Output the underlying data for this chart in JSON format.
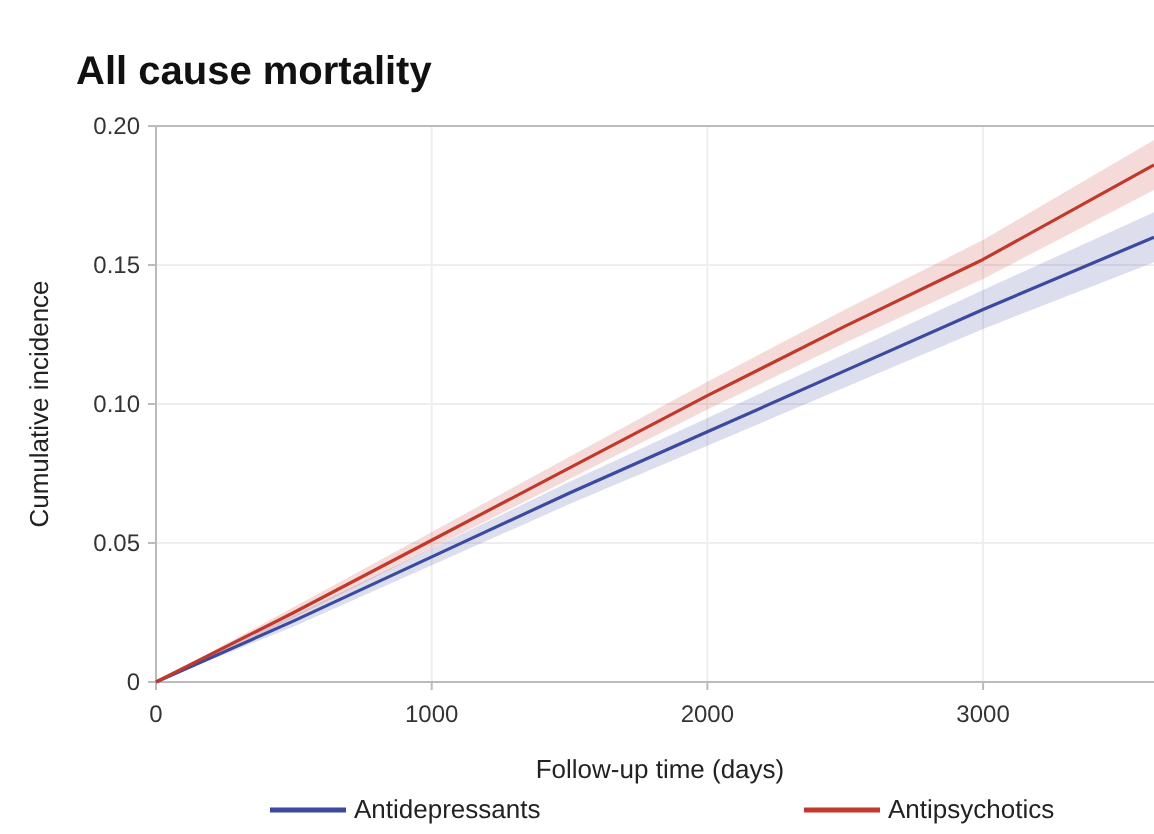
{
  "chart_data": {
    "type": "line",
    "title": "All cause mortality",
    "xlabel": "Follow-up time (days)",
    "ylabel": "Cumulative incidence",
    "x": [
      0,
      500,
      1000,
      1500,
      2000,
      2500,
      3000,
      3620
    ],
    "series": [
      {
        "name": "Antidepressants",
        "color": "#3b4a9e",
        "values": [
          0,
          0.022,
          0.045,
          0.068,
          0.09,
          0.112,
          0.134,
          0.16
        ],
        "lower": [
          0,
          0.02,
          0.042,
          0.064,
          0.085,
          0.106,
          0.127,
          0.151
        ],
        "upper": [
          0,
          0.024,
          0.048,
          0.072,
          0.095,
          0.118,
          0.141,
          0.169
        ]
      },
      {
        "name": "Antipsychotics",
        "color": "#c0392b",
        "values": [
          0,
          0.025,
          0.051,
          0.077,
          0.103,
          0.128,
          0.152,
          0.186
        ],
        "lower": [
          0,
          0.023,
          0.048,
          0.073,
          0.098,
          0.122,
          0.145,
          0.177
        ],
        "upper": [
          0,
          0.027,
          0.054,
          0.081,
          0.108,
          0.134,
          0.159,
          0.195
        ]
      }
    ],
    "xlim": [
      0,
      3620
    ],
    "xticks": [
      0,
      1000,
      2000,
      3000
    ],
    "ylim": [
      0,
      0.2
    ],
    "yticks": [
      0,
      0.05,
      {
        "value": 0.1,
        "label": "0.10"
      },
      0.15,
      {
        "value": 0.2,
        "label": "0.20"
      }
    ],
    "grid": true,
    "legend": "bottom",
    "line_style": "solid"
  }
}
